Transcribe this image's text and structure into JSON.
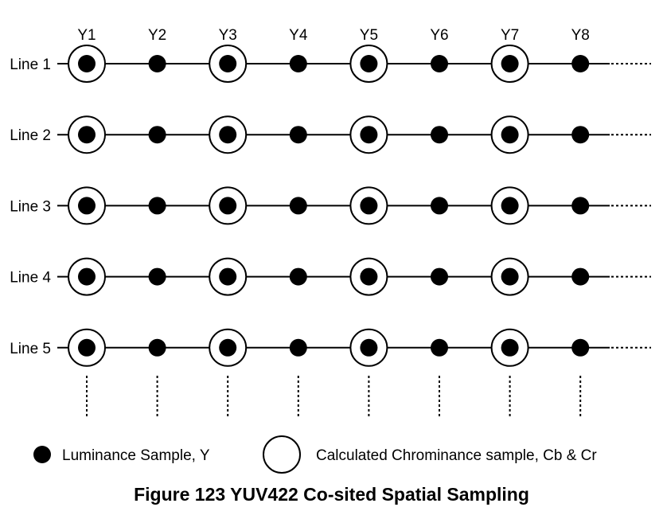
{
  "columns": [
    "Y1",
    "Y2",
    "Y3",
    "Y4",
    "Y5",
    "Y6",
    "Y7",
    "Y8"
  ],
  "rows": [
    "Line 1",
    "Line 2",
    "Line 3",
    "Line 4",
    "Line 5"
  ],
  "chroma_columns": [
    "Y1",
    "Y3",
    "Y5",
    "Y7"
  ],
  "legend": {
    "luminance": "Luminance Sample, Y",
    "chrominance": "Calculated Chrominance sample, Cb & Cr"
  },
  "caption": "Figure 123 YUV422 Co-sited Spatial Sampling",
  "colors": {
    "ink": "#000000",
    "background": "#ffffff"
  }
}
